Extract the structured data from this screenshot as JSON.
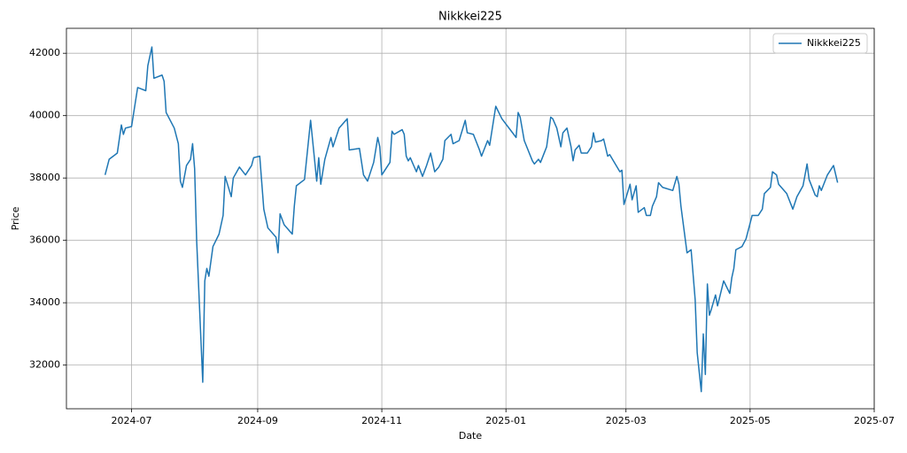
{
  "chart_data": {
    "type": "line",
    "title": "Nikkkei225",
    "xlabel": "Date",
    "ylabel": "Price",
    "x": [
      -13,
      -11,
      -7,
      -5,
      -4,
      -3,
      0,
      3,
      7,
      8,
      10,
      11,
      15,
      16,
      17,
      21,
      23,
      24,
      25,
      27,
      29,
      30,
      31,
      32,
      35,
      36,
      37,
      38,
      40,
      43,
      45,
      46,
      49,
      50,
      53,
      56,
      59,
      60,
      63,
      65,
      67,
      71,
      72,
      73,
      75,
      79,
      80,
      81,
      85,
      88,
      91,
      92,
      93,
      95,
      98,
      99,
      102,
      106,
      107,
      112,
      114,
      116,
      119,
      121,
      122,
      123,
      127,
      128,
      129,
      133,
      134,
      135,
      136,
      137,
      140,
      141,
      143,
      145,
      147,
      149,
      151,
      153,
      154,
      157,
      158,
      161,
      164,
      165,
      168,
      171,
      172,
      175,
      176,
      179,
      182,
      189,
      190,
      191,
      193,
      197,
      198,
      200,
      201,
      204,
      206,
      207,
      209,
      211,
      212,
      214,
      216,
      217,
      218,
      220,
      221,
      224,
      226,
      227,
      228,
      231,
      232,
      234,
      235,
      240,
      241,
      242,
      245,
      246,
      248,
      249,
      252,
      253,
      255,
      256,
      258,
      259,
      261,
      266,
      268,
      269,
      270,
      271,
      273,
      275,
      277,
      278,
      280,
      281,
      282,
      283,
      284,
      285,
      287,
      288,
      291,
      294,
      295,
      296,
      297,
      300,
      302,
      305,
      308,
      310,
      311,
      314,
      315,
      317,
      318,
      322,
      325,
      327,
      330,
      332,
      333,
      336,
      337,
      338,
      339,
      342,
      345,
      347
    ],
    "series": [
      {
        "name": "Nikkkei225",
        "color": "#1f77b4",
        "values": [
          38100,
          38600,
          38800,
          39700,
          39400,
          39600,
          39650,
          40900,
          40800,
          41600,
          42200,
          41200,
          41300,
          41100,
          40100,
          39600,
          39100,
          37900,
          37700,
          38400,
          38600,
          39100,
          38300,
          36000,
          31450,
          34700,
          35100,
          34850,
          35800,
          36200,
          36800,
          38050,
          37400,
          38000,
          38350,
          38100,
          38400,
          38650,
          38700,
          37000,
          36400,
          36100,
          35600,
          36850,
          36500,
          36200,
          37100,
          37750,
          37950,
          39850,
          37900,
          38650,
          37800,
          38600,
          39300,
          39000,
          39600,
          39900,
          38900,
          38950,
          38100,
          37900,
          38500,
          39300,
          39000,
          38100,
          38500,
          39500,
          39400,
          39550,
          39400,
          38700,
          38550,
          38650,
          38200,
          38400,
          38050,
          38400,
          38800,
          38200,
          38350,
          38600,
          39200,
          39400,
          39100,
          39200,
          39850,
          39450,
          39400,
          38900,
          38700,
          39200,
          39050,
          40300,
          39900,
          39300,
          40100,
          39950,
          39200,
          38550,
          38450,
          38600,
          38500,
          39000,
          39950,
          39900,
          39600,
          39000,
          39450,
          39600,
          39000,
          38550,
          38900,
          39050,
          38800,
          38800,
          39000,
          39450,
          39150,
          39200,
          39250,
          38700,
          38750,
          38200,
          38250,
          37150,
          37800,
          37300,
          37750,
          36900,
          37050,
          36800,
          36800,
          37100,
          37400,
          37850,
          37700,
          37600,
          38050,
          37800,
          37100,
          36600,
          35600,
          35700,
          34100,
          32400,
          31150,
          33000,
          31700,
          34600,
          33600,
          33800,
          34250,
          33900,
          34700,
          34300,
          34800,
          35100,
          35700,
          35800,
          36050,
          36800,
          36800,
          37000,
          37500,
          37700,
          38200,
          38100,
          37800,
          37500,
          37000,
          37400,
          37750,
          38450,
          37950,
          37450,
          37400,
          37750,
          37600,
          38100,
          38400,
          37850
        ]
      }
    ],
    "xlim": [
      -32,
      365
    ],
    "xticks": [
      {
        "value": 0,
        "label": "2024-07"
      },
      {
        "value": 62,
        "label": "2024-09"
      },
      {
        "value": 123,
        "label": "2024-11"
      },
      {
        "value": 184,
        "label": "2025-01"
      },
      {
        "value": 243,
        "label": "2025-03"
      },
      {
        "value": 304,
        "label": "2025-05"
      },
      {
        "value": 365,
        "label": "2025-07"
      }
    ],
    "ylim": [
      30600,
      42800
    ],
    "yticks": [
      32000,
      34000,
      36000,
      38000,
      40000,
      42000
    ],
    "grid": true,
    "legend": "upper right"
  }
}
